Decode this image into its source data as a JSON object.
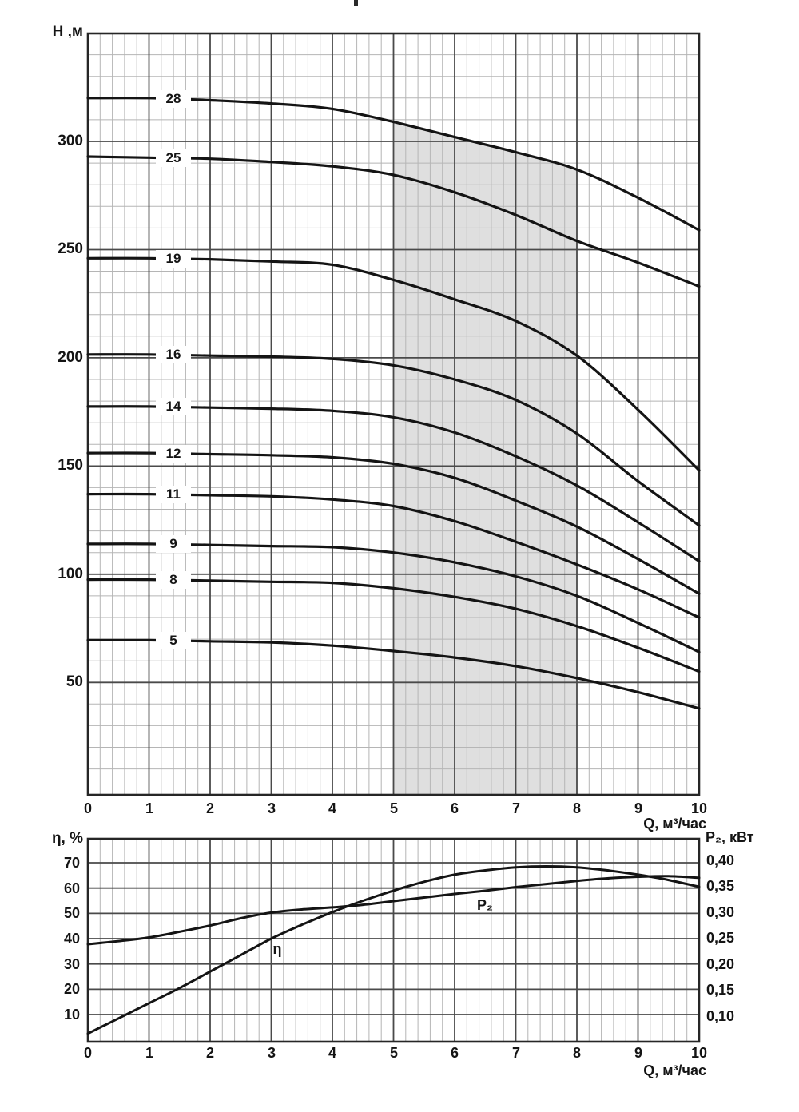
{
  "chart_data": [
    {
      "type": "line",
      "id": "head-flow-curves",
      "ylabel": "Н ,м",
      "xlabel": "Q, м³/час",
      "x_ticks": [
        "0",
        "1",
        "2",
        "3",
        "4",
        "5",
        "6",
        "7",
        "8",
        "9",
        "10"
      ],
      "y_ticks": [
        "50",
        "100",
        "150",
        "200",
        "250",
        "300"
      ],
      "xlim": [
        0,
        10
      ],
      "ylim": [
        0,
        350
      ],
      "grid": "major x:1 y:50, minor x:0.2 y:10",
      "legend_position": "labels-on-curves",
      "x": [
        0,
        1,
        2,
        3,
        4,
        5,
        6,
        7,
        8,
        9,
        10
      ],
      "series": [
        {
          "name": "28",
          "values": [
            320,
            320,
            319,
            317.5,
            315,
            309,
            302,
            295,
            287,
            274,
            259
          ]
        },
        {
          "name": "25",
          "values": [
            293,
            292.5,
            292,
            290.5,
            288.5,
            284.5,
            276.5,
            266,
            254,
            244,
            233
          ]
        },
        {
          "name": "19",
          "values": [
            246,
            246,
            245.5,
            244.5,
            243,
            236,
            227,
            217,
            201,
            176,
            148
          ]
        },
        {
          "name": "16",
          "values": [
            201.5,
            201.5,
            201,
            200.5,
            199.5,
            196.5,
            190,
            180.5,
            165,
            143,
            122.5
          ]
        },
        {
          "name": "14",
          "values": [
            177.5,
            177.5,
            177,
            176.5,
            175.5,
            172.5,
            165.5,
            154.5,
            141,
            124,
            106
          ]
        },
        {
          "name": "12",
          "values": [
            156,
            156,
            155.5,
            155,
            154,
            151,
            144.5,
            134,
            122,
            107,
            91
          ]
        },
        {
          "name": "11",
          "values": [
            137,
            137,
            136.5,
            136,
            134.5,
            131.5,
            124.5,
            115,
            104.5,
            93,
            80
          ]
        },
        {
          "name": "9",
          "values": [
            114,
            114,
            113.5,
            113,
            112.5,
            110,
            105.5,
            99,
            90,
            77.5,
            64
          ]
        },
        {
          "name": "8",
          "values": [
            97.5,
            97.5,
            97,
            96.5,
            96,
            93.5,
            89.5,
            84,
            76,
            66,
            55
          ]
        },
        {
          "name": "5",
          "values": [
            69.5,
            69.5,
            69,
            68.5,
            67,
            64.5,
            61.5,
            57.5,
            52,
            45.5,
            38
          ]
        }
      ],
      "shaded_operating_range_q": [
        5,
        8
      ]
    },
    {
      "type": "line",
      "id": "efficiency-power-curves",
      "left_ylabel": "η, %",
      "right_ylabel": "P₂, кВт",
      "xlabel": "Q, м³/час",
      "x_ticks": [
        "0",
        "1",
        "2",
        "3",
        "4",
        "5",
        "6",
        "7",
        "8",
        "9",
        "10"
      ],
      "left_ticks": [
        "10",
        "20",
        "30",
        "40",
        "50",
        "60",
        "70"
      ],
      "right_ticks": [
        "0,10",
        "0,15",
        "0,20",
        "0,25",
        "0,30",
        "0,35",
        "0,40"
      ],
      "xlim": [
        0,
        10
      ],
      "left_ylim": [
        0,
        80
      ],
      "right_ylim": [
        0.05,
        0.45
      ],
      "grid": "major x:1 y:10, minor x:0.2",
      "x": [
        0,
        0.5,
        1,
        1.5,
        2,
        2.5,
        3,
        3.5,
        4,
        4.5,
        5,
        5.5,
        6,
        6.5,
        7,
        7.5,
        8,
        8.5,
        9,
        9.5,
        10
      ],
      "series": [
        {
          "name": "η",
          "axis": "left",
          "values": [
            2.5,
            8.5,
            14.5,
            20.5,
            27,
            33.5,
            40,
            45.5,
            50.5,
            55,
            59,
            62.5,
            65.3,
            67,
            68.2,
            68.6,
            68.2,
            67,
            65.3,
            63.2,
            60.5
          ]
        },
        {
          "name": "P₂",
          "axis": "right",
          "values": [
            0.238,
            0.244,
            0.251,
            0.262,
            0.274,
            0.288,
            0.299,
            0.305,
            0.309,
            0.314,
            0.321,
            0.328,
            0.335,
            0.341,
            0.348,
            0.354,
            0.36,
            0.365,
            0.368,
            0.369,
            0.366
          ]
        }
      ]
    }
  ]
}
